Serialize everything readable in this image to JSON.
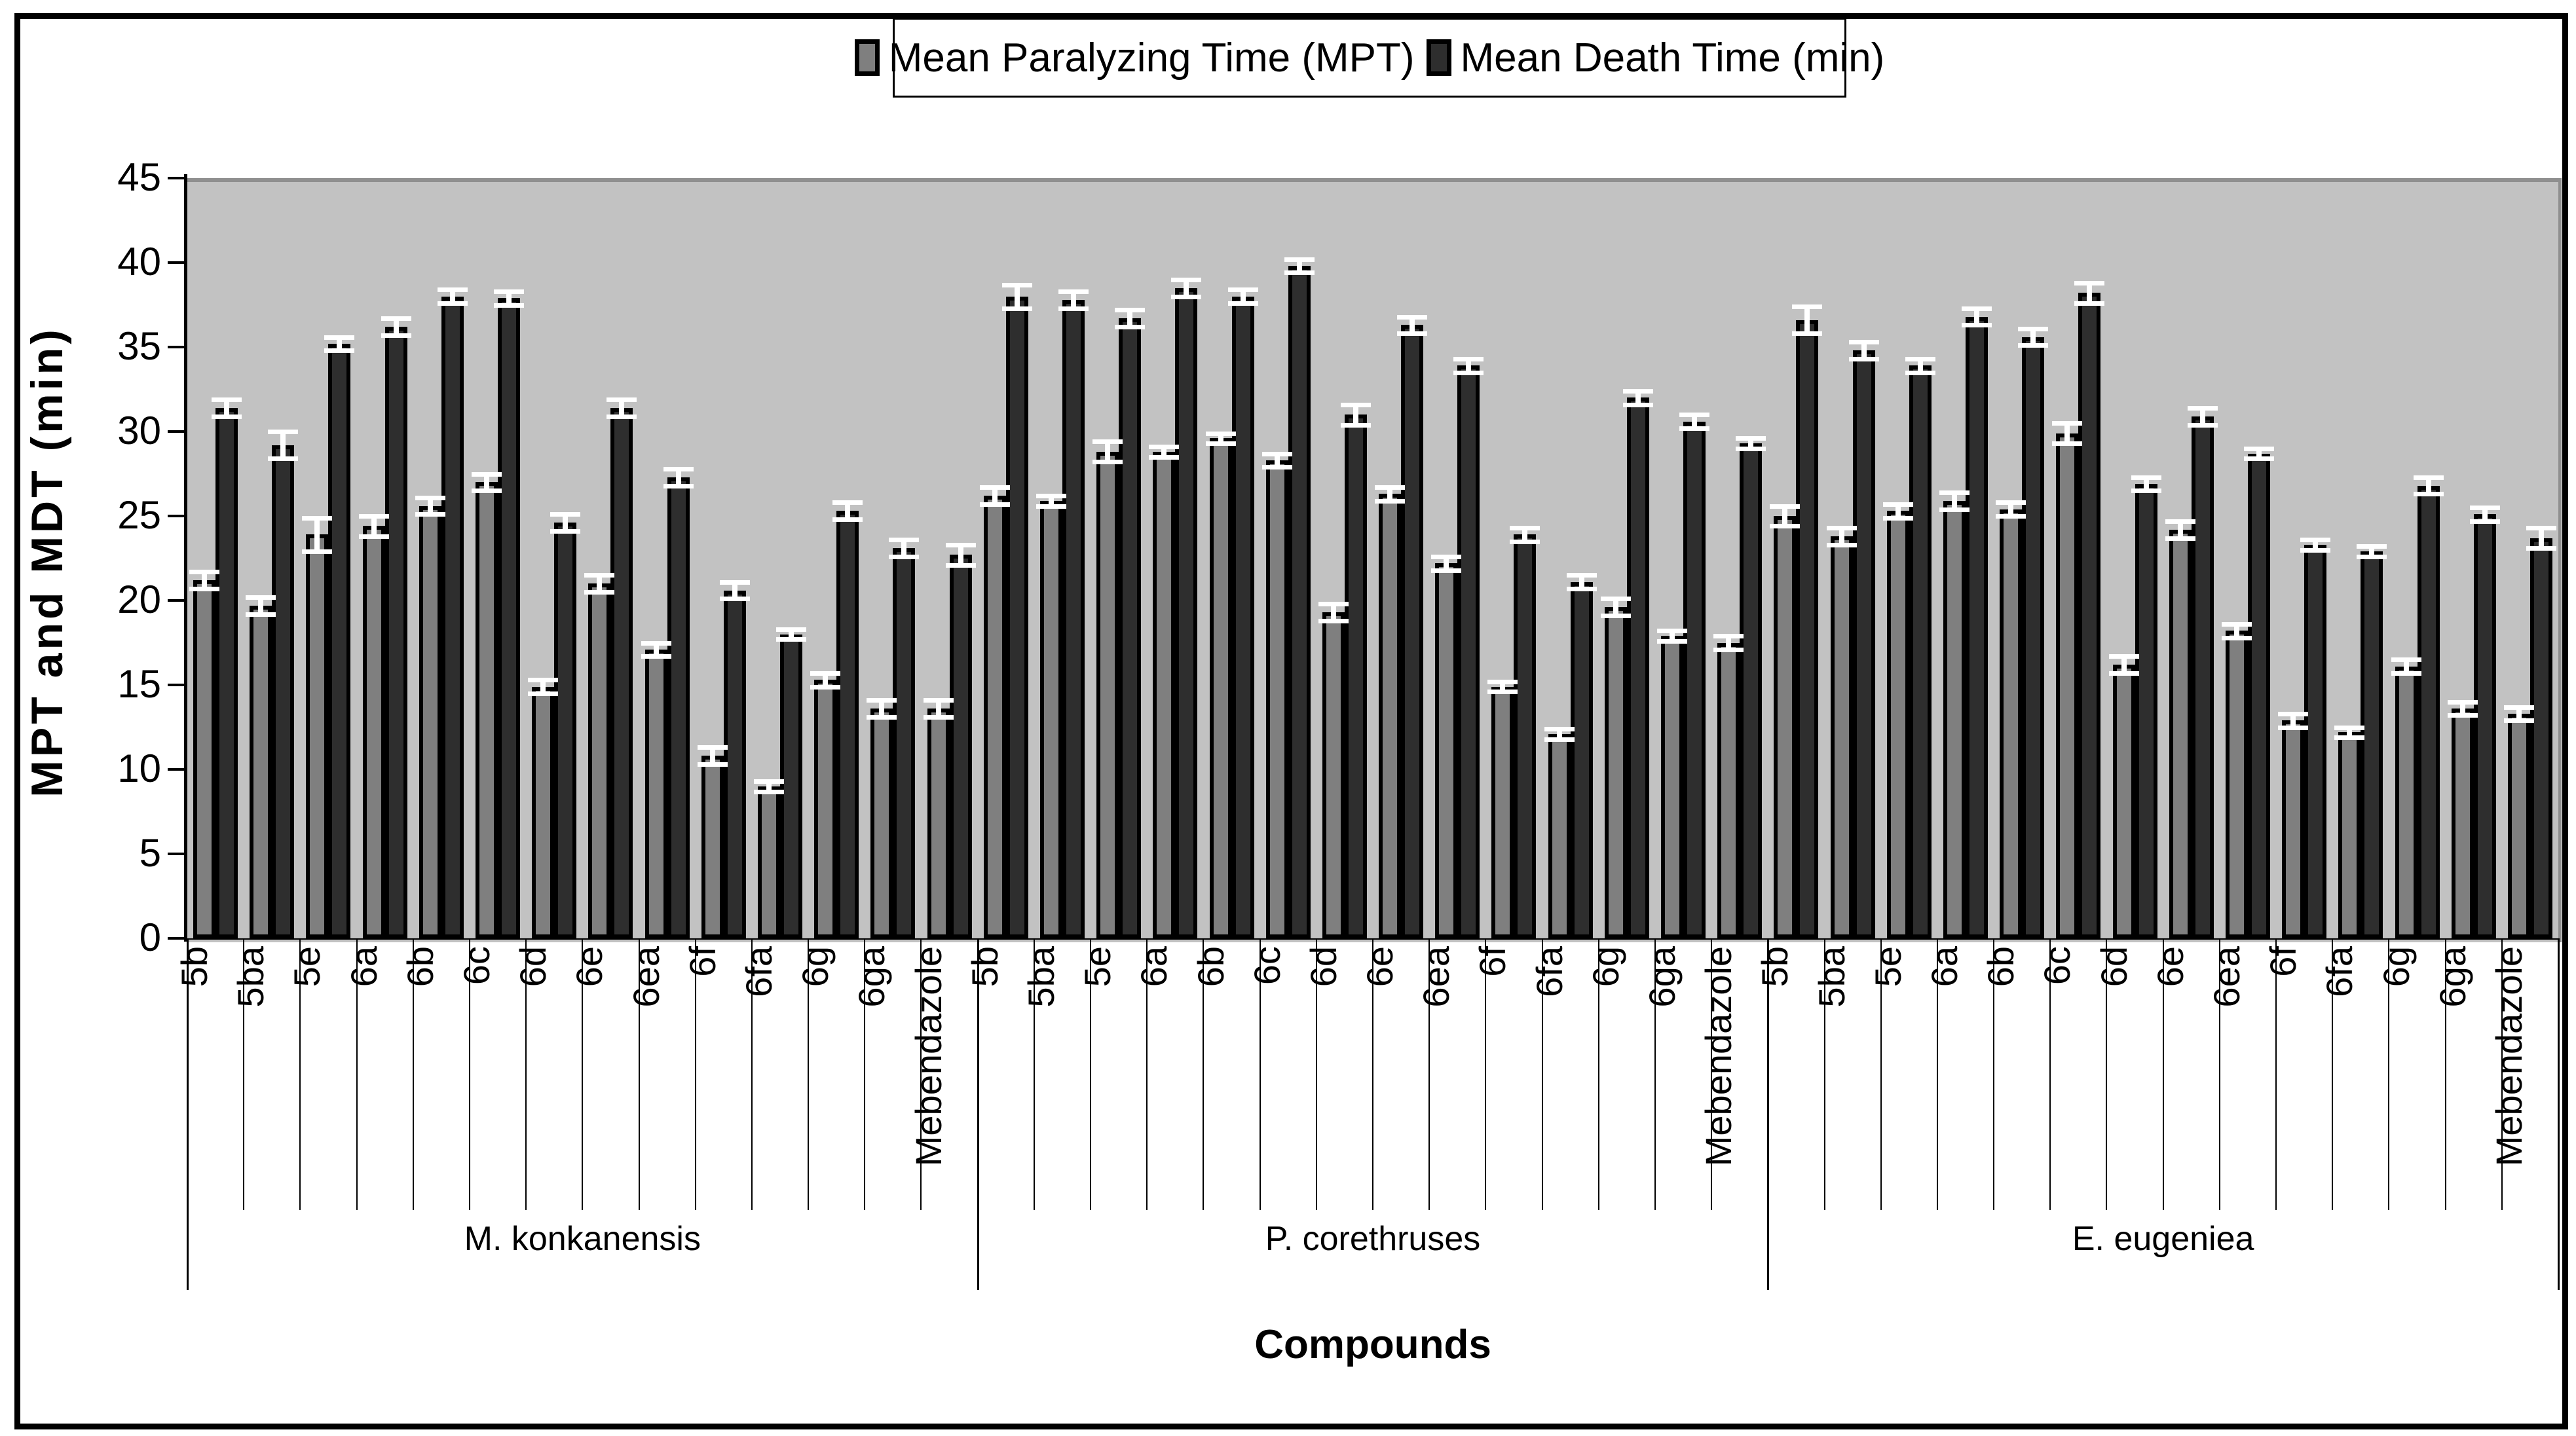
{
  "legend": {
    "items": [
      {
        "label": "Mean Paralyzing Time (MPT)",
        "color": "#7f7f7f"
      },
      {
        "label": "Mean Death Time (min)",
        "color": "#2e2e2e"
      }
    ]
  },
  "chart_data": {
    "type": "bar",
    "title": "",
    "ylabel": "MPT and MDT (min)",
    "xlabel": "Compounds",
    "ylim": [
      0,
      45
    ],
    "yticks": [
      0,
      5,
      10,
      15,
      20,
      25,
      30,
      35,
      40,
      45
    ],
    "grid": false,
    "legend_position": "top",
    "plot_bg_color": "#c2c2c2",
    "bar_colors": {
      "mpt": "#7f7f7f",
      "mdt": "#2e2e2e"
    },
    "error_bar_color": "#ffffff",
    "categories": [
      "5b",
      "5ba",
      "5e",
      "6a",
      "6b",
      "6c",
      "6d",
      "6e",
      "6ea",
      "6f",
      "6fa",
      "6g",
      "6ga",
      "Mebendazole"
    ],
    "groups": [
      {
        "name": "M. konkanensis",
        "series": [
          {
            "name": "Mean Paralyzing Time (MPT)",
            "values": [
              21.2,
              19.7,
              23.9,
              24.4,
              25.6,
              27.0,
              14.9,
              21.0,
              17.1,
              10.8,
              9.0,
              15.3,
              13.6,
              13.6
            ],
            "errors": [
              0.5,
              0.5,
              1.0,
              0.6,
              0.5,
              0.5,
              0.4,
              0.5,
              0.4,
              0.5,
              0.3,
              0.4,
              0.5,
              0.5
            ]
          },
          {
            "name": "Mean Death Time (min)",
            "values": [
              31.4,
              29.2,
              35.2,
              36.2,
              38.0,
              37.9,
              24.6,
              31.4,
              27.3,
              20.6,
              18.0,
              25.3,
              23.1,
              22.7
            ],
            "errors": [
              0.5,
              0.8,
              0.4,
              0.5,
              0.4,
              0.4,
              0.5,
              0.5,
              0.5,
              0.5,
              0.3,
              0.5,
              0.5,
              0.6
            ]
          }
        ]
      },
      {
        "name": "P. corethruses",
        "series": [
          {
            "name": "Mean Paralyzing Time (MPT)",
            "values": [
              26.2,
              25.9,
              28.8,
              28.8,
              29.6,
              28.3,
              19.3,
              26.3,
              22.2,
              14.9,
              12.1,
              19.6,
              17.9,
              17.5
            ],
            "errors": [
              0.5,
              0.3,
              0.6,
              0.3,
              0.3,
              0.4,
              0.5,
              0.4,
              0.4,
              0.3,
              0.3,
              0.5,
              0.3,
              0.4
            ]
          },
          {
            "name": "Mean Death Time (min)",
            "values": [
              38.0,
              37.8,
              36.7,
              38.5,
              38.0,
              39.8,
              31.0,
              36.3,
              33.9,
              23.9,
              21.1,
              32.0,
              30.6,
              29.3
            ],
            "errors": [
              0.7,
              0.5,
              0.5,
              0.5,
              0.4,
              0.4,
              0.6,
              0.5,
              0.4,
              0.4,
              0.4,
              0.4,
              0.4,
              0.3
            ]
          }
        ]
      },
      {
        "name": "E. eugeniea",
        "series": [
          {
            "name": "Mean Paralyzing Time (MPT)",
            "values": [
              25.0,
              23.8,
              25.3,
              25.9,
              25.4,
              29.9,
              16.2,
              24.2,
              18.2,
              12.9,
              12.2,
              16.1,
              13.6,
              13.3
            ],
            "errors": [
              0.6,
              0.5,
              0.4,
              0.5,
              0.4,
              0.6,
              0.5,
              0.5,
              0.4,
              0.4,
              0.3,
              0.4,
              0.4,
              0.4
            ]
          },
          {
            "name": "Mean Death Time (min)",
            "values": [
              36.6,
              34.8,
              33.9,
              36.8,
              35.6,
              38.2,
              26.9,
              30.9,
              28.7,
              23.3,
              22.9,
              26.8,
              25.1,
              23.7
            ],
            "errors": [
              0.8,
              0.5,
              0.4,
              0.5,
              0.5,
              0.6,
              0.4,
              0.5,
              0.3,
              0.3,
              0.3,
              0.5,
              0.4,
              0.6
            ]
          }
        ]
      }
    ]
  }
}
